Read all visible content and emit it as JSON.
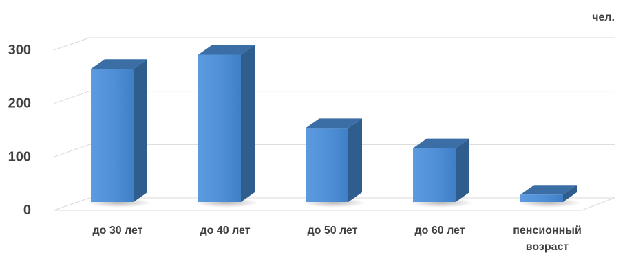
{
  "chart_data": {
    "type": "bar",
    "unit_label": "чел.",
    "categories": [
      "до 30 лет",
      "до 40 лет",
      "до 50 лет",
      "до 60 лет",
      "пенсионный возраст"
    ],
    "category_lines": [
      [
        "до 30 лет"
      ],
      [
        "до 40 лет"
      ],
      [
        "до 50 лет"
      ],
      [
        "до 60 лет"
      ],
      [
        "пенсионный",
        "возраст"
      ]
    ],
    "values": [
      252,
      279,
      140,
      102,
      14
    ],
    "ylim": [
      0,
      300
    ],
    "yticks": [
      0,
      100,
      200,
      300
    ],
    "grid": true,
    "bar_style": "3d-column",
    "colors": {
      "bar_front": "#5B9BD5",
      "bar_side": "#2F5D8E",
      "bar_top": "#3A6EA5",
      "grid": "#d9d9d9",
      "text": "#404040"
    }
  }
}
